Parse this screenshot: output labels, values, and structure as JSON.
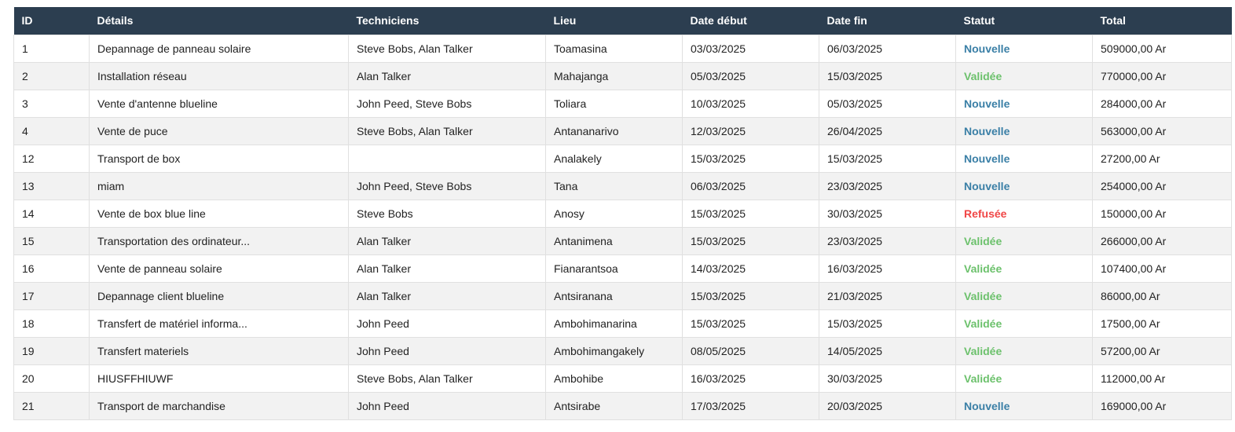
{
  "colors": {
    "header_bg": "#2c3e50",
    "status_nouvelle": "#3a7fa6",
    "status_validee": "#6cc16c",
    "status_refusee": "#f04646"
  },
  "table": {
    "headers": [
      "ID",
      "Détails",
      "Techniciens",
      "Lieu",
      "Date début",
      "Date fin",
      "Statut",
      "Total"
    ],
    "rows": [
      {
        "id": "1",
        "details": "Depannage de panneau solaire",
        "techniciens": "Steve Bobs, Alan Talker",
        "lieu": "Toamasina",
        "debut": "03/03/2025",
        "fin": "06/03/2025",
        "statut": "Nouvelle",
        "total": "509000,00 Ar"
      },
      {
        "id": "2",
        "details": "Installation réseau",
        "techniciens": "Alan Talker",
        "lieu": "Mahajanga",
        "debut": "05/03/2025",
        "fin": "15/03/2025",
        "statut": "Validée",
        "total": "770000,00 Ar"
      },
      {
        "id": "3",
        "details": "Vente d'antenne blueline",
        "techniciens": "John Peed, Steve Bobs",
        "lieu": "Toliara",
        "debut": "10/03/2025",
        "fin": "05/03/2025",
        "statut": "Nouvelle",
        "total": "284000,00 Ar"
      },
      {
        "id": "4",
        "details": "Vente de puce",
        "techniciens": "Steve Bobs, Alan Talker",
        "lieu": "Antananarivo",
        "debut": "12/03/2025",
        "fin": "26/04/2025",
        "statut": "Nouvelle",
        "total": "563000,00 Ar"
      },
      {
        "id": "12",
        "details": "Transport de box",
        "techniciens": "",
        "lieu": "Analakely",
        "debut": "15/03/2025",
        "fin": "15/03/2025",
        "statut": "Nouvelle",
        "total": "27200,00 Ar"
      },
      {
        "id": "13",
        "details": "miam",
        "techniciens": "John Peed, Steve Bobs",
        "lieu": "Tana",
        "debut": "06/03/2025",
        "fin": "23/03/2025",
        "statut": "Nouvelle",
        "total": "254000,00 Ar"
      },
      {
        "id": "14",
        "details": "Vente de box blue line",
        "techniciens": "Steve Bobs",
        "lieu": "Anosy",
        "debut": "15/03/2025",
        "fin": "30/03/2025",
        "statut": "Refusée",
        "total": "150000,00 Ar"
      },
      {
        "id": "15",
        "details": "Transportation des ordinateur...",
        "techniciens": "Alan Talker",
        "lieu": "Antanimena",
        "debut": "15/03/2025",
        "fin": "23/03/2025",
        "statut": "Validée",
        "total": "266000,00 Ar"
      },
      {
        "id": "16",
        "details": "Vente de panneau solaire",
        "techniciens": "Alan Talker",
        "lieu": "Fianarantsoa",
        "debut": "14/03/2025",
        "fin": "16/03/2025",
        "statut": "Validée",
        "total": "107400,00 Ar"
      },
      {
        "id": "17",
        "details": "Depannage client blueline",
        "techniciens": "Alan Talker",
        "lieu": "Antsiranana",
        "debut": "15/03/2025",
        "fin": "21/03/2025",
        "statut": "Validée",
        "total": "86000,00 Ar"
      },
      {
        "id": "18",
        "details": "Transfert de matériel informa...",
        "techniciens": "John Peed",
        "lieu": "Ambohimanarina",
        "debut": "15/03/2025",
        "fin": "15/03/2025",
        "statut": "Validée",
        "total": "17500,00 Ar"
      },
      {
        "id": "19",
        "details": "Transfert materiels",
        "techniciens": "John Peed",
        "lieu": "Ambohimangakely",
        "debut": "08/05/2025",
        "fin": "14/05/2025",
        "statut": "Validée",
        "total": "57200,00 Ar"
      },
      {
        "id": "20",
        "details": "HIUSFFHIUWF",
        "techniciens": "Steve Bobs, Alan Talker",
        "lieu": "Ambohibe",
        "debut": "16/03/2025",
        "fin": "30/03/2025",
        "statut": "Validée",
        "total": "112000,00 Ar"
      },
      {
        "id": "21",
        "details": "Transport de marchandise",
        "techniciens": "John Peed",
        "lieu": "Antsirabe",
        "debut": "17/03/2025",
        "fin": "20/03/2025",
        "statut": "Nouvelle",
        "total": "169000,00 Ar"
      }
    ]
  }
}
